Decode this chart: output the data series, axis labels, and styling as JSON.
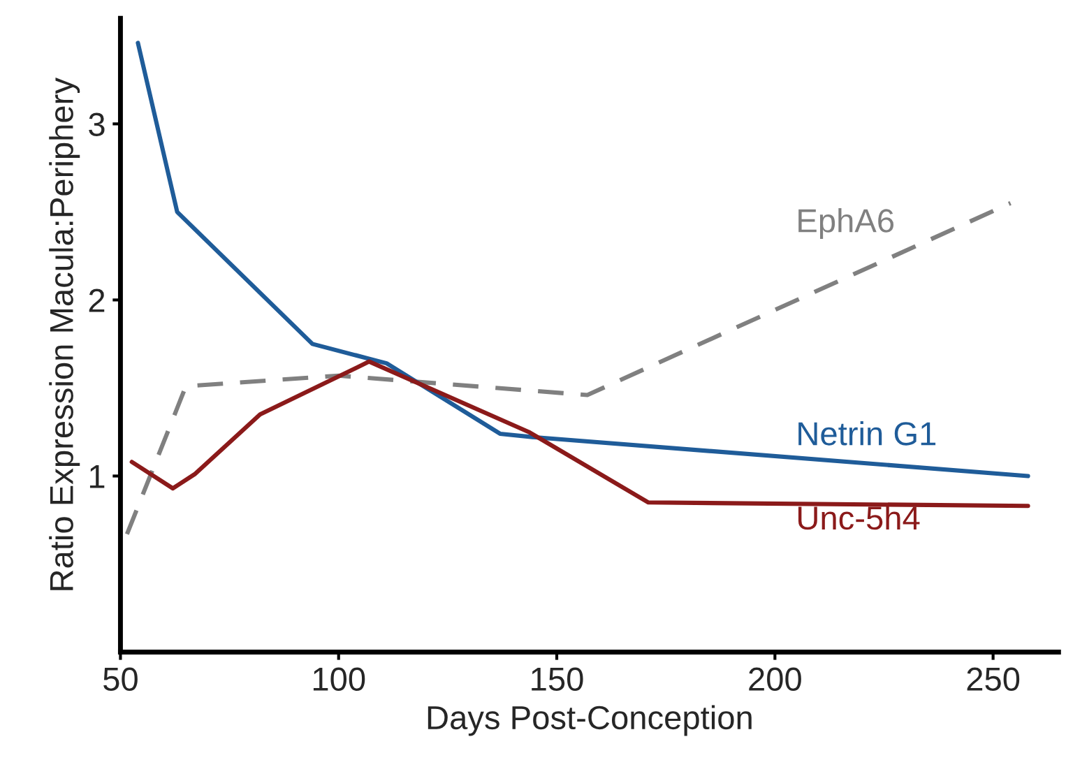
{
  "chart_data": {
    "type": "line",
    "xlabel": "Days Post-Conception",
    "ylabel": "Ratio Expression Macula:Periphery",
    "xlim": [
      50,
      265
    ],
    "xticks": [
      50,
      100,
      150,
      200,
      250
    ],
    "ylim": [
      0,
      3.6
    ],
    "yticks": [
      1,
      2,
      3
    ],
    "grid": false,
    "legend": false,
    "series": [
      {
        "name": "EphA6",
        "color": "#808080",
        "line_style": "dashed",
        "x": [
          51.5,
          65,
          100,
          157,
          254
        ],
        "values": [
          0.67,
          1.51,
          1.57,
          1.46,
          2.55
        ]
      },
      {
        "name": "Netrin G1",
        "color": "#1f5c99",
        "line_style": "solid",
        "x": [
          54,
          63,
          94,
          111,
          137,
          145,
          258
        ],
        "values": [
          3.46,
          2.5,
          1.75,
          1.64,
          1.24,
          1.22,
          1.0
        ]
      },
      {
        "name": "Unc-5h4",
        "color": "#8b1a1a",
        "line_style": "solid",
        "x": [
          52.6,
          62,
          67,
          82,
          107,
          143.6,
          171,
          258
        ],
        "values": [
          1.08,
          0.93,
          1.01,
          1.35,
          1.65,
          1.25,
          0.85,
          0.83
        ]
      }
    ]
  }
}
